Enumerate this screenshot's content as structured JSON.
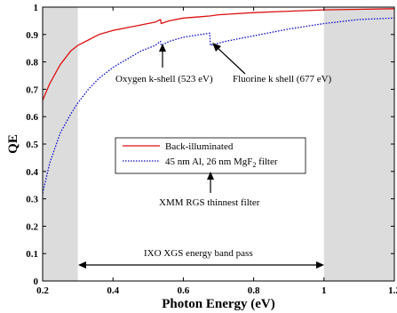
{
  "chart_data": {
    "type": "line",
    "xlabel": "Photon Energy (eV)",
    "ylabel": "QE",
    "xlim": [
      0.2,
      1.2
    ],
    "ylim": [
      0,
      1
    ],
    "xticks": [
      0.2,
      0.4,
      0.6,
      0.8,
      1.0,
      1.2
    ],
    "xtick_labels": [
      "0.2",
      "0.4",
      "0.6",
      "0.8",
      "1",
      "1.2"
    ],
    "yticks": [
      0,
      0.1,
      0.2,
      0.3,
      0.4,
      0.5,
      0.6,
      0.7,
      0.8,
      0.9,
      1.0
    ],
    "ytick_labels": [
      "0",
      "0.1",
      "0.2",
      "0.3",
      "0.4",
      "0.5",
      "0.6",
      "0.7",
      "0.8",
      "0.9",
      "1"
    ],
    "grid": false,
    "legend_position": "center",
    "colors": {
      "back_illuminated": "#dd1111",
      "filtered": "#1111cc",
      "shade": "#dcdcdc"
    },
    "shaded_ranges": [
      [
        0.2,
        0.3
      ],
      [
        1.0,
        1.2
      ]
    ],
    "series": [
      {
        "name": "Back-illuminated",
        "style": "solid",
        "x": [
          0.2,
          0.22,
          0.25,
          0.28,
          0.3,
          0.33,
          0.36,
          0.4,
          0.44,
          0.48,
          0.52,
          0.535,
          0.537,
          0.56,
          0.6,
          0.65,
          0.677,
          0.7,
          0.8,
          0.9,
          1.0,
          1.1,
          1.2
        ],
        "y": [
          0.66,
          0.72,
          0.79,
          0.84,
          0.86,
          0.88,
          0.9,
          0.915,
          0.925,
          0.935,
          0.945,
          0.955,
          0.94,
          0.95,
          0.96,
          0.965,
          0.968,
          0.972,
          0.98,
          0.985,
          0.99,
          0.992,
          0.994
        ]
      },
      {
        "name": "45 nm Al, 26 nm MgF2 filter",
        "name_parts": [
          "45 nm Al, 26 nm MgF",
          "2",
          " filter"
        ],
        "style": "dotted",
        "x": [
          0.2,
          0.22,
          0.25,
          0.28,
          0.3,
          0.33,
          0.36,
          0.4,
          0.44,
          0.48,
          0.52,
          0.535,
          0.537,
          0.56,
          0.6,
          0.65,
          0.675,
          0.677,
          0.69,
          0.72,
          0.76,
          0.8,
          0.9,
          1.0,
          1.1,
          1.2
        ],
        "y": [
          0.32,
          0.43,
          0.54,
          0.61,
          0.65,
          0.7,
          0.74,
          0.78,
          0.81,
          0.84,
          0.86,
          0.875,
          0.86,
          0.875,
          0.89,
          0.9,
          0.905,
          0.86,
          0.865,
          0.875,
          0.885,
          0.895,
          0.92,
          0.94,
          0.955,
          0.96
        ]
      }
    ],
    "annotations": {
      "oxygen": "Oxygen k-shell (523 eV)",
      "fluorine": "Fluorine k shell (677 eV)",
      "xmm": "XMM RGS thinnest filter",
      "ixo": "IXO XGS energy band pass"
    }
  }
}
